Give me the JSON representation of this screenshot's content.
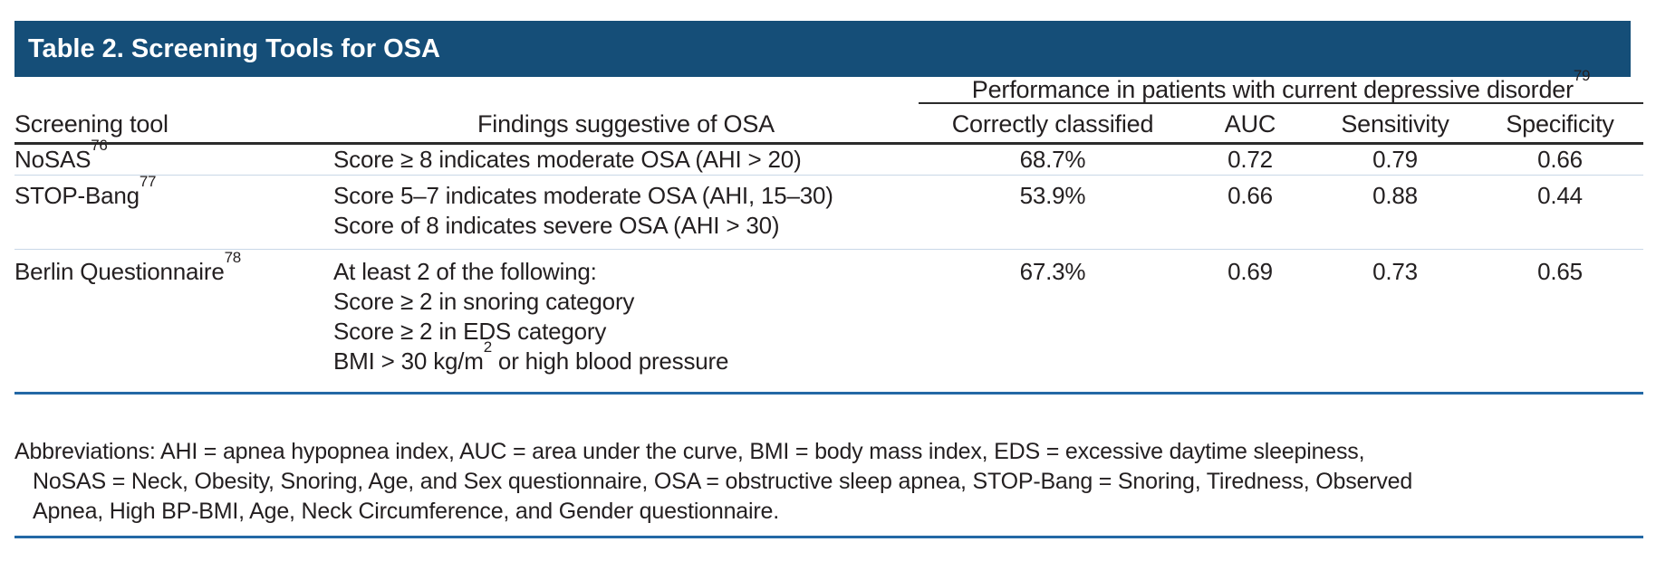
{
  "title_bar": {
    "text": "Table 2. Screening Tools for OSA"
  },
  "table": {
    "span_header": {
      "label": "Performance in patients with current depressive disorder",
      "ref": "79"
    },
    "columns": [
      {
        "key": "tool",
        "label": "Screening tool"
      },
      {
        "key": "findings",
        "label": "Findings suggestive of OSA"
      },
      {
        "key": "correct",
        "label": "Correctly classified"
      },
      {
        "key": "auc",
        "label": "AUC"
      },
      {
        "key": "sensitivity",
        "label": "Sensitivity"
      },
      {
        "key": "specificity",
        "label": "Specificity"
      }
    ],
    "rows": [
      {
        "tool": "NoSAS",
        "ref": "76",
        "findings": [
          "Score ≥ 8 indicates moderate OSA (AHI > 20)"
        ],
        "correct": "68.7%",
        "auc": "0.72",
        "sensitivity": "0.79",
        "specificity": "0.66"
      },
      {
        "tool": "STOP-Bang",
        "ref": "77",
        "findings": [
          "Score 5–7 indicates moderate OSA (AHI, 15–30)",
          "Score of 8 indicates severe OSA (AHI > 30)"
        ],
        "correct": "53.9%",
        "auc": "0.66",
        "sensitivity": "0.88",
        "specificity": "0.44"
      },
      {
        "tool": "Berlin Questionnaire",
        "ref": "78",
        "findings": [
          "At least 2 of the following:",
          "Score ≥ 2 in snoring category",
          "Score ≥ 2 in EDS category",
          {
            "pre": "BMI > 30 kg/m",
            "sup": "2",
            "post": " or high blood pressure"
          }
        ],
        "correct": "67.3%",
        "auc": "0.69",
        "sensitivity": "0.73",
        "specificity": "0.65"
      }
    ],
    "footnote_lines": [
      "Abbreviations: AHI = apnea hypopnea index, AUC = area under the curve, BMI = body mass index, EDS = excessive daytime sleepiness,",
      "NoSAS = Neck, Obesity, Snoring, Age, and Sex questionnaire, OSA = obstructive sleep apnea, STOP-Bang = Snoring, Tiredness, Observed",
      "Apnea, High BP-BMI, Age, Neck Circumference, and Gender questionnaire."
    ]
  },
  "colors": {
    "header_bar": "#154E78",
    "rule_blue": "#2368A5",
    "rule_dark": "#2B2B2B",
    "row_divider": "#C9D8E7",
    "text": "#231F20"
  }
}
